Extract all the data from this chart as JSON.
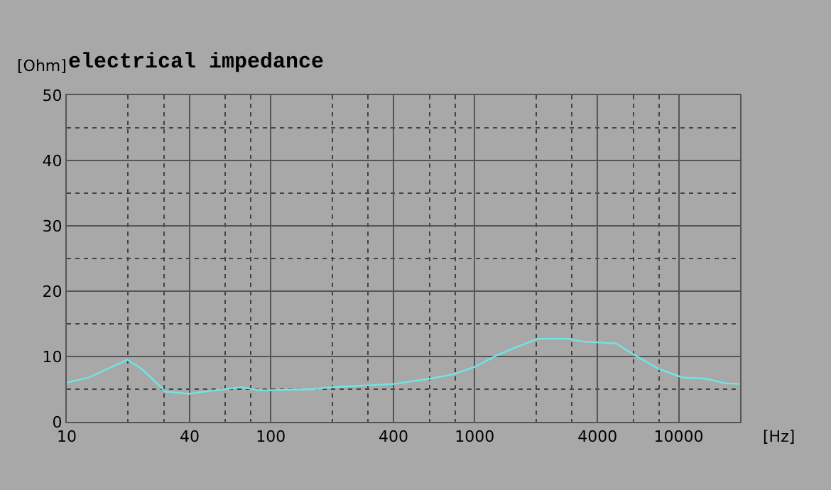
{
  "chart_data": {
    "type": "line",
    "title": "electrical impedance",
    "xlabel": "[Hz]",
    "ylabel": "[Ohm]",
    "log": "x",
    "grid": true,
    "marker": "none",
    "line_style": "solid",
    "series": [
      {
        "color": "#6ee6e6",
        "x": [
          10,
          12.9,
          19.8,
          23.3,
          30.5,
          40,
          46.7,
          72,
          89,
          161,
          200,
          403,
          575,
          794,
          1000,
          1287,
          1683,
          2030,
          2880,
          3380,
          4930,
          6100,
          7970,
          10400,
          13600,
          16900,
          19850
        ],
        "values": [
          6.0,
          6.8,
          9.5,
          8.1,
          4.6,
          4.3,
          4.6,
          5.3,
          4.8,
          5.0,
          5.3,
          5.8,
          6.5,
          7.3,
          8.4,
          10.2,
          11.7,
          12.7,
          12.7,
          12.3,
          12.0,
          10.2,
          8.1,
          6.8,
          6.6,
          5.9,
          5.8
        ]
      }
    ],
    "xlim": [
      10,
      20000
    ],
    "xticks": [
      10,
      40,
      100,
      400,
      1000,
      4000,
      10000
    ],
    "ylim": [
      0,
      50
    ],
    "yticks": [
      0,
      10,
      20,
      30,
      40,
      50
    ]
  }
}
